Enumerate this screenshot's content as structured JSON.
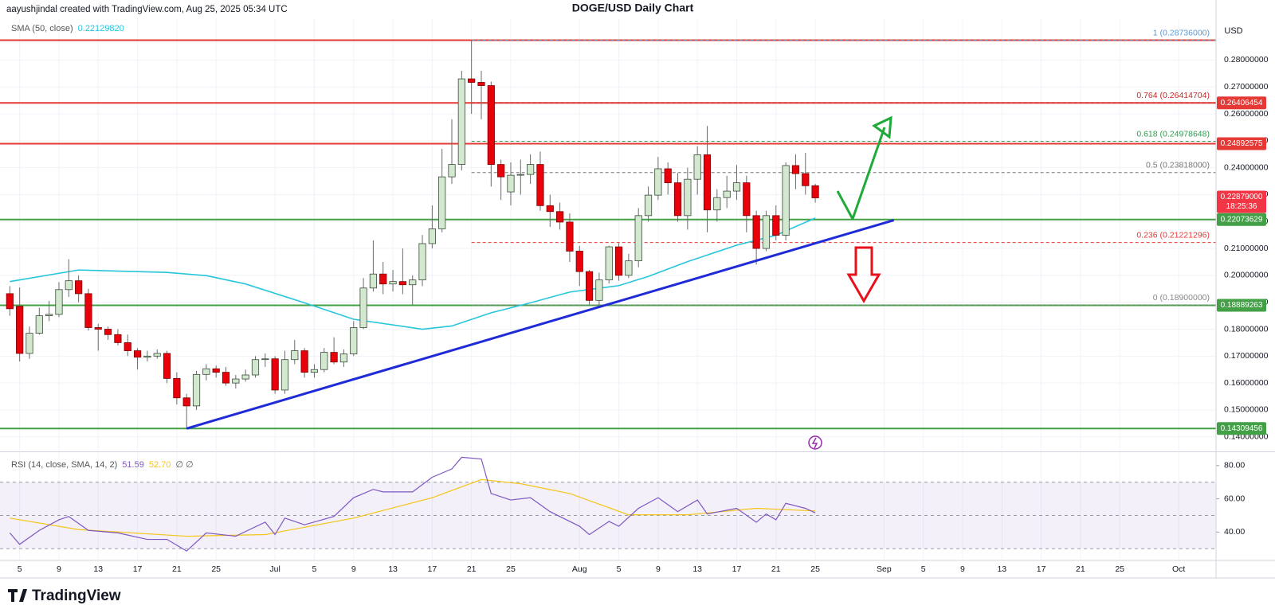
{
  "header": {
    "credit": "aayushjindal created with TradingView.com, Aug 25, 2025 05:34 UTC",
    "title": "DOGE/USD Daily Chart"
  },
  "footer": {
    "brand": "TradingView"
  },
  "chart_data": [
    {
      "type": "candlestick",
      "y_label": "USD",
      "xlim": [
        -1,
        122.8
      ],
      "ylim": [
        0.1349,
        0.2955
      ],
      "grid": true,
      "up_color": "#d3e9cf",
      "down_color": "#e8000b",
      "wick_color": "#6b6b6b",
      "yticks": [
        {
          "value": 0.14,
          "label": "0.14000000"
        },
        {
          "value": 0.15,
          "label": "0.15000000"
        },
        {
          "value": 0.16,
          "label": "0.16000000"
        },
        {
          "value": 0.17,
          "label": "0.17000000"
        },
        {
          "value": 0.18,
          "label": "0.18000000"
        },
        {
          "value": 0.19,
          "label": "0.19000000"
        },
        {
          "value": 0.2,
          "label": "0.20000000"
        },
        {
          "value": 0.21,
          "label": "0.21000000"
        },
        {
          "value": 0.22,
          "label": "0.22000000"
        },
        {
          "value": 0.23,
          "label": "0.23000000"
        },
        {
          "value": 0.24,
          "label": "0.24000000"
        },
        {
          "value": 0.25,
          "label": "0.25000000"
        },
        {
          "value": 0.26,
          "label": "0.26000000"
        },
        {
          "value": 0.27,
          "label": "0.27000000"
        },
        {
          "value": 0.28,
          "label": "0.28000000"
        }
      ],
      "xticks": [
        {
          "value": 1,
          "label": "5"
        },
        {
          "value": 5,
          "label": "9"
        },
        {
          "value": 9,
          "label": "13"
        },
        {
          "value": 13,
          "label": "17"
        },
        {
          "value": 17,
          "label": "21"
        },
        {
          "value": 21,
          "label": "25"
        },
        {
          "value": 27,
          "label": "Jul"
        },
        {
          "value": 31,
          "label": "5"
        },
        {
          "value": 35,
          "label": "9"
        },
        {
          "value": 39,
          "label": "13"
        },
        {
          "value": 43,
          "label": "17"
        },
        {
          "value": 47,
          "label": "21"
        },
        {
          "value": 51,
          "label": "25"
        },
        {
          "value": 58,
          "label": "Aug"
        },
        {
          "value": 62,
          "label": "5"
        },
        {
          "value": 66,
          "label": "9"
        },
        {
          "value": 70,
          "label": "13"
        },
        {
          "value": 74,
          "label": "17"
        },
        {
          "value": 78,
          "label": "21"
        },
        {
          "value": 82,
          "label": "25"
        },
        {
          "value": 89,
          "label": "Sep"
        },
        {
          "value": 93,
          "label": "5"
        },
        {
          "value": 97,
          "label": "9"
        },
        {
          "value": 101,
          "label": "13"
        },
        {
          "value": 105,
          "label": "17"
        },
        {
          "value": 109,
          "label": "21"
        },
        {
          "value": 113,
          "label": "25"
        },
        {
          "value": 119,
          "label": "Oct"
        }
      ],
      "x": [
        0,
        1,
        2,
        3,
        4,
        5,
        6,
        7,
        8,
        9,
        10,
        11,
        12,
        13,
        14,
        15,
        16,
        17,
        18,
        19,
        20,
        21,
        22,
        23,
        24,
        25,
        26,
        27,
        28,
        29,
        30,
        31,
        32,
        33,
        34,
        35,
        36,
        37,
        38,
        39,
        40,
        41,
        42,
        43,
        44,
        45,
        46,
        47,
        48,
        49,
        50,
        51,
        52,
        53,
        54,
        55,
        56,
        57,
        58,
        59,
        60,
        61,
        62,
        63,
        64,
        65,
        66,
        67,
        68,
        69,
        70,
        71,
        72,
        73,
        74,
        75,
        76,
        77,
        78,
        79,
        80,
        81,
        82
      ],
      "open": [
        0.1932,
        0.1885,
        0.171,
        0.1785,
        0.185,
        0.1855,
        0.1947,
        0.198,
        0.1932,
        0.1806,
        0.18,
        0.178,
        0.175,
        0.172,
        0.1696,
        0.17,
        0.171,
        0.1617,
        0.1545,
        0.1515,
        0.1632,
        0.1653,
        0.164,
        0.16,
        0.1615,
        0.163,
        0.1687,
        0.169,
        0.1574,
        0.1687,
        0.172,
        0.164,
        0.165,
        0.1714,
        0.1678,
        0.1708,
        0.1806,
        0.1953,
        0.2005,
        0.1968,
        0.1977,
        0.1965,
        0.1983,
        0.2118,
        0.2173,
        0.2366,
        0.2412,
        0.273,
        0.2717,
        0.2705,
        0.2412,
        0.231,
        0.2372,
        0.2375,
        0.2412,
        0.2259,
        0.2237,
        0.2198,
        0.209,
        0.2014,
        0.1907,
        0.1983,
        0.2106,
        0.2,
        0.2054,
        0.2222,
        0.2298,
        0.2396,
        0.2344,
        0.2222,
        0.2357,
        0.2448,
        0.2243,
        0.2289,
        0.2313,
        0.2344,
        0.2222,
        0.21,
        0.2222,
        0.2149,
        0.2408,
        0.2378,
        0.2333
      ],
      "high": [
        0.196,
        0.1955,
        0.181,
        0.188,
        0.1905,
        0.1975,
        0.206,
        0.2,
        0.195,
        0.182,
        0.181,
        0.18,
        0.178,
        0.173,
        0.172,
        0.1725,
        0.172,
        0.164,
        0.156,
        0.1645,
        0.167,
        0.1665,
        0.166,
        0.163,
        0.165,
        0.17,
        0.171,
        0.17,
        0.172,
        0.176,
        0.173,
        0.167,
        0.173,
        0.177,
        0.1725,
        0.183,
        0.199,
        0.213,
        0.205,
        0.202,
        0.21,
        0.2,
        0.215,
        0.226,
        0.247,
        0.258,
        0.276,
        0.2874,
        0.276,
        0.272,
        0.243,
        0.242,
        0.243,
        0.245,
        0.246,
        0.23,
        0.227,
        0.223,
        0.211,
        0.202,
        0.201,
        0.211,
        0.212,
        0.208,
        0.225,
        0.233,
        0.244,
        0.242,
        0.238,
        0.24,
        0.248,
        0.2555,
        0.232,
        0.237,
        0.241,
        0.237,
        0.224,
        0.224,
        0.226,
        0.242,
        0.245,
        0.2455,
        0.234
      ],
      "low": [
        0.185,
        0.168,
        0.169,
        0.178,
        0.183,
        0.1845,
        0.192,
        0.19,
        0.1795,
        0.172,
        0.176,
        0.174,
        0.17,
        0.165,
        0.168,
        0.169,
        0.16,
        0.152,
        0.1431,
        0.15,
        0.161,
        0.162,
        0.159,
        0.158,
        0.1605,
        0.162,
        0.166,
        0.156,
        0.156,
        0.167,
        0.162,
        0.162,
        0.164,
        0.167,
        0.166,
        0.17,
        0.18,
        0.194,
        0.193,
        0.194,
        0.193,
        0.189,
        0.196,
        0.21,
        0.216,
        0.234,
        0.239,
        0.26,
        0.258,
        0.233,
        0.228,
        0.226,
        0.23,
        0.234,
        0.224,
        0.218,
        0.217,
        0.205,
        0.196,
        0.189,
        0.189,
        0.197,
        0.198,
        0.199,
        0.203,
        0.22,
        0.228,
        0.23,
        0.22,
        0.217,
        0.23,
        0.216,
        0.22,
        0.225,
        0.228,
        0.216,
        0.204,
        0.209,
        0.213,
        0.213,
        0.232,
        0.23,
        0.227
      ],
      "close": [
        0.1876,
        0.171,
        0.1785,
        0.185,
        0.1855,
        0.1947,
        0.198,
        0.1932,
        0.1806,
        0.18,
        0.178,
        0.175,
        0.172,
        0.1696,
        0.17,
        0.171,
        0.1617,
        0.1545,
        0.1515,
        0.1632,
        0.1653,
        0.164,
        0.16,
        0.1615,
        0.163,
        0.1687,
        0.169,
        0.1574,
        0.1687,
        0.172,
        0.164,
        0.165,
        0.1714,
        0.1678,
        0.1708,
        0.1806,
        0.1953,
        0.2005,
        0.1968,
        0.1977,
        0.1965,
        0.1983,
        0.2118,
        0.2173,
        0.2366,
        0.2412,
        0.273,
        0.2717,
        0.2705,
        0.2412,
        0.2366,
        0.2372,
        0.2375,
        0.2412,
        0.2259,
        0.2237,
        0.2198,
        0.209,
        0.2014,
        0.1907,
        0.1983,
        0.2106,
        0.2,
        0.2054,
        0.2222,
        0.2298,
        0.2396,
        0.2344,
        0.2222,
        0.2357,
        0.2448,
        0.2243,
        0.2289,
        0.2313,
        0.2344,
        0.2222,
        0.21,
        0.2222,
        0.2149,
        0.2408,
        0.2378,
        0.2333,
        0.2288
      ],
      "sma": {
        "name": "SMA (50, close)",
        "value_label": "0.22129820",
        "color": "#26c6da",
        "x": [
          0,
          7,
          16,
          20,
          24,
          30,
          35,
          42,
          45,
          49,
          53,
          57,
          62,
          65,
          69,
          74,
          78,
          82
        ],
        "values": [
          0.1977,
          0.202,
          0.2011,
          0.1999,
          0.1968,
          0.1898,
          0.1837,
          0.18,
          0.1812,
          0.1861,
          0.1898,
          0.1938,
          0.1962,
          0.1996,
          0.2051,
          0.2112,
          0.2149,
          0.2213
        ]
      },
      "trendline": {
        "color": "#1f2bd6",
        "x": [
          18,
          90
        ],
        "values": [
          0.1431,
          0.2205
        ]
      },
      "levels": [
        {
          "value": 0.28736,
          "color": "#e53935"
        },
        {
          "value": 0.26406454,
          "label": "0.26406454",
          "color": "#e53935"
        },
        {
          "value": 0.24892575,
          "label": "0.24892575",
          "color": "#e53935"
        },
        {
          "value": 0.22073629,
          "label": "0.22073629",
          "color": "#43a047"
        },
        {
          "value": 0.18889263,
          "label": "0.18889263",
          "color": "#43a047"
        },
        {
          "value": 0.14309456,
          "label": "0.14309456",
          "color": "#43a047"
        }
      ],
      "fib": [
        {
          "value": 0.28736,
          "label": "1 (0.28736000)",
          "color": "#5b9bd5"
        },
        {
          "value": 0.26414704,
          "label": "0.764 (0.26414704)",
          "color": "#c62828"
        },
        {
          "value": 0.24978648,
          "label": "0.618 (0.24978648)",
          "color": "#2e9e4f"
        },
        {
          "value": 0.23818,
          "label": "0.5 (0.23818000)",
          "color": "#777777"
        },
        {
          "value": 0.21221296,
          "label": "0.236 (0.21221296)",
          "color": "#e53935"
        },
        {
          "value": 0.189,
          "label": "0 (0.18900000)",
          "color": "#888888"
        }
      ],
      "last_price": {
        "value": 0.22879,
        "label": "0.22879000",
        "countdown": "18:25:36",
        "color": "#f23645"
      }
    },
    {
      "type": "line",
      "title": "RSI (14, close, SMA, 14, 2)",
      "legend_extra": "∅ ∅",
      "xlim": [
        -1,
        122.8
      ],
      "ylim": [
        23.4,
        87.6
      ],
      "band": [
        30,
        70
      ],
      "midline": 50,
      "band_color": "#7e57c2",
      "yticks": [
        {
          "value": 40,
          "label": "40.00"
        },
        {
          "value": 60,
          "label": "60.00"
        },
        {
          "value": 80,
          "label": "80.00"
        }
      ],
      "series": [
        {
          "color": "#7e57c2",
          "value_label": "51.59",
          "x": [
            0,
            1,
            3,
            5,
            6,
            8,
            11,
            14,
            16,
            18,
            20,
            23,
            26,
            27,
            28,
            30,
            33,
            35,
            37,
            38,
            41,
            43,
            45,
            46,
            48,
            49,
            51,
            53,
            55,
            58,
            59,
            61,
            62,
            64,
            66,
            68,
            70,
            71,
            74,
            76,
            77,
            78,
            79,
            81,
            82
          ],
          "values": [
            39.5,
            32.6,
            41,
            47.4,
            49.4,
            41,
            39.5,
            35.6,
            35.6,
            28.6,
            39.5,
            37.5,
            46,
            38.5,
            48.4,
            44.4,
            49.4,
            60.7,
            65.7,
            64.2,
            64.2,
            73,
            78,
            85,
            84,
            63.2,
            59.3,
            60.7,
            52.3,
            43.5,
            38.5,
            46.4,
            43.5,
            54.3,
            60.7,
            52.3,
            59.3,
            50.9,
            54.3,
            45.9,
            50.9,
            47.4,
            57.3,
            54.3,
            51.59
          ]
        },
        {
          "color": "#f5c518",
          "value_label": "52.70",
          "x": [
            0,
            7,
            18,
            26,
            35,
            43,
            48,
            52,
            57,
            63,
            69,
            76,
            82
          ],
          "values": [
            48.4,
            41.5,
            37.5,
            38.5,
            48.4,
            60.7,
            71.6,
            69.1,
            63.2,
            50.4,
            50.4,
            54.3,
            52.7
          ]
        }
      ]
    }
  ]
}
